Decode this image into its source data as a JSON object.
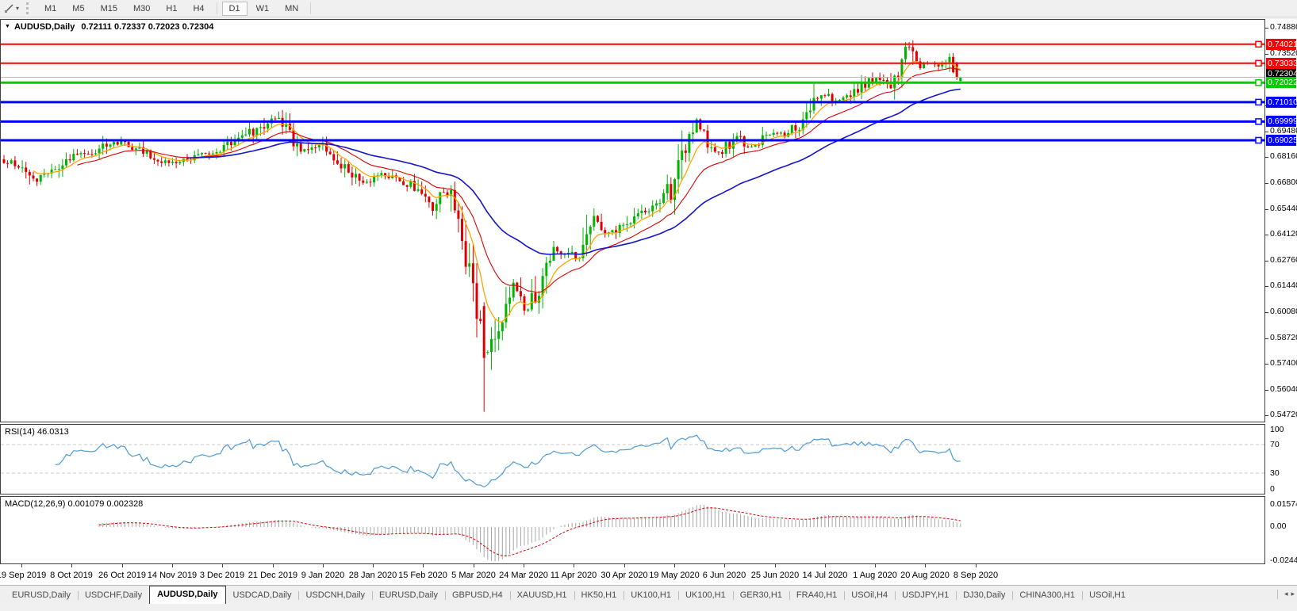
{
  "toolbar": {
    "dropdown_caret": "▾",
    "timeframes": [
      {
        "label": "M1",
        "active": false
      },
      {
        "label": "M5",
        "active": false
      },
      {
        "label": "M15",
        "active": false
      },
      {
        "label": "M30",
        "active": false
      },
      {
        "label": "H1",
        "active": false
      },
      {
        "label": "H4",
        "active": false
      },
      {
        "label": "D1",
        "active": true
      },
      {
        "label": "W1",
        "active": false
      },
      {
        "label": "MN",
        "active": false
      }
    ]
  },
  "window": {
    "menu_arrow": "▼",
    "symbol_title": "AUDUSD,Daily",
    "ohlc": "0.72111 0.72337 0.72023 0.72304"
  },
  "chart_data": {
    "type": "candlestick",
    "symbol": "AUDUSD",
    "timeframe": "Daily",
    "bar_count": 262,
    "candle_up_color": "#00B400",
    "candle_down_color": "#DE0000",
    "last_bar": {
      "open": 0.72111,
      "high": 0.72337,
      "low": 0.72023,
      "close": 0.72304
    },
    "close_anchors": [
      [
        0,
        0.6795
      ],
      [
        5,
        0.676
      ],
      [
        9,
        0.67
      ],
      [
        13,
        0.6738
      ],
      [
        19,
        0.6822
      ],
      [
        25,
        0.6835
      ],
      [
        30,
        0.6895
      ],
      [
        36,
        0.6858
      ],
      [
        44,
        0.6785
      ],
      [
        51,
        0.6815
      ],
      [
        56,
        0.6838
      ],
      [
        62,
        0.6885
      ],
      [
        69,
        0.696
      ],
      [
        73,
        0.702
      ],
      [
        76,
        0.7
      ],
      [
        81,
        0.6855
      ],
      [
        87,
        0.6895
      ],
      [
        93,
        0.6755
      ],
      [
        98,
        0.669
      ],
      [
        104,
        0.6725
      ],
      [
        110,
        0.668
      ],
      [
        114,
        0.66
      ],
      [
        117,
        0.6545
      ],
      [
        120,
        0.663
      ],
      [
        123,
        0.658
      ],
      [
        126,
        0.63
      ],
      [
        128,
        0.613
      ],
      [
        131,
        0.578
      ],
      [
        133,
        0.583
      ],
      [
        136,
        0.6
      ],
      [
        139,
        0.615
      ],
      [
        142,
        0.601
      ],
      [
        146,
        0.613
      ],
      [
        150,
        0.634
      ],
      [
        154,
        0.631
      ],
      [
        157,
        0.627
      ],
      [
        161,
        0.648
      ],
      [
        165,
        0.642
      ],
      [
        169,
        0.645
      ],
      [
        173,
        0.653
      ],
      [
        178,
        0.6545
      ],
      [
        182,
        0.665
      ],
      [
        185,
        0.682
      ],
      [
        189,
        0.7
      ],
      [
        192,
        0.687
      ],
      [
        196,
        0.6845
      ],
      [
        200,
        0.693
      ],
      [
        204,
        0.6865
      ],
      [
        209,
        0.695
      ],
      [
        213,
        0.6935
      ],
      [
        218,
        0.7
      ],
      [
        223,
        0.714
      ],
      [
        228,
        0.7105
      ],
      [
        233,
        0.7155
      ],
      [
        238,
        0.723
      ],
      [
        242,
        0.7175
      ],
      [
        246,
        0.74
      ],
      [
        249,
        0.729
      ],
      [
        252,
        0.73
      ],
      [
        255,
        0.7295
      ],
      [
        258,
        0.732
      ],
      [
        260,
        0.723
      ],
      [
        261,
        0.72304
      ]
    ],
    "bar_overrides": {
      "131": {
        "o": 0.604,
        "h": 0.606,
        "l": 0.549,
        "c": 0.577
      },
      "246": {
        "h": 0.7414
      },
      "260": {
        "o": 0.7302,
        "h": 0.7311,
        "l": 0.7216,
        "c": 0.7228
      },
      "261": {
        "o": 0.72111,
        "h": 0.72337,
        "l": 0.72023,
        "c": 0.72304
      }
    },
    "moving_averages": [
      {
        "period": 8,
        "type": "ema",
        "color": "#FFA500",
        "width": 1.3
      },
      {
        "period": 20,
        "type": "ema",
        "color": "#DC0000",
        "width": 1.1
      },
      {
        "period": 50,
        "type": "ema",
        "color": "#1515C8",
        "width": 1.6
      }
    ],
    "price_axis": {
      "min": 0.54348,
      "max": 0.75334,
      "ticks": [
        "0.74880",
        "0.73520",
        "0.70840",
        "0.69480",
        "0.68160",
        "0.66800",
        "0.65440",
        "0.64120",
        "0.62760",
        "0.61440",
        "0.60080",
        "0.58720",
        "0.57400",
        "0.56040",
        "0.54720"
      ]
    },
    "hlines": [
      {
        "price": 0.74021,
        "label": "0.74021",
        "color": "#FF0000",
        "width": 2
      },
      {
        "price": 0.73033,
        "label": "0.73033",
        "color": "#FF0000",
        "width": 2
      },
      {
        "price": 0.72022,
        "label": "0.72022",
        "color": "#00CC00",
        "width": 3
      },
      {
        "price": 0.7101,
        "label": "0.71010",
        "color": "#0000FF",
        "width": 3
      },
      {
        "price": 0.69999,
        "label": "0.69999",
        "color": "#0000FF",
        "width": 3
      },
      {
        "price": 0.69025,
        "label": "0.69025",
        "color": "#0000FF",
        "width": 3
      }
    ],
    "current_price": {
      "value": 0.72304,
      "label": "0.72304",
      "line_color": "#B8B8B8",
      "box_color": "#000000"
    },
    "rsi": {
      "label": "RSI(14)",
      "value": "46.0313",
      "period": 14,
      "levels": [
        100,
        70,
        30,
        0
      ],
      "levels_dashed": [
        70,
        30
      ],
      "line_color": "#4D9BD5"
    },
    "macd": {
      "label": "MACD(12,26,9)",
      "values": "0.001079 0.002328",
      "fast": 12,
      "slow": 26,
      "signal": 9,
      "axis_labels": [
        "0.015741",
        "0.00",
        "-0.02441"
      ],
      "hist_color": "#A6A6A6",
      "signal_color": "#E00000"
    }
  },
  "time_axis": {
    "dates": [
      "19 Sep 2019",
      "8 Oct 2019",
      "26 Oct 2019",
      "14 Nov 2019",
      "3 Dec 2019",
      "21 Dec 2019",
      "9 Jan 2020",
      "28 Jan 2020",
      "15 Feb 2020",
      "5 Mar 2020",
      "24 Mar 2020",
      "11 Apr 2020",
      "30 Apr 2020",
      "19 May 2020",
      "6 Jun 2020",
      "25 Jun 2020",
      "14 Jul 2020",
      "1 Aug 2020",
      "20 Aug 2020",
      "8 Sep 2020"
    ]
  },
  "tabs": {
    "scroll_left": "◂",
    "scroll_right": "▸",
    "items": [
      {
        "label": "EURUSD,Daily",
        "active": false
      },
      {
        "label": "USDCHF,Daily",
        "active": false
      },
      {
        "label": "AUDUSD,Daily",
        "active": true
      },
      {
        "label": "USDCAD,Daily",
        "active": false
      },
      {
        "label": "USDCNH,Daily",
        "active": false
      },
      {
        "label": "EURUSD,Daily",
        "active": false
      },
      {
        "label": "GBPUSD,H4",
        "active": false
      },
      {
        "label": "XAUUSD,H1",
        "active": false
      },
      {
        "label": "HK50,H1",
        "active": false
      },
      {
        "label": "UK100,H1",
        "active": false
      },
      {
        "label": "UK100,H1",
        "active": false
      },
      {
        "label": "GER30,H1",
        "active": false
      },
      {
        "label": "FRA40,H1",
        "active": false
      },
      {
        "label": "USOil,H4",
        "active": false
      },
      {
        "label": "USDJPY,H1",
        "active": false
      },
      {
        "label": "DJ30,Daily",
        "active": false
      },
      {
        "label": "CHINA300,H1",
        "active": false
      },
      {
        "label": "USOil,H1",
        "active": false
      }
    ]
  }
}
